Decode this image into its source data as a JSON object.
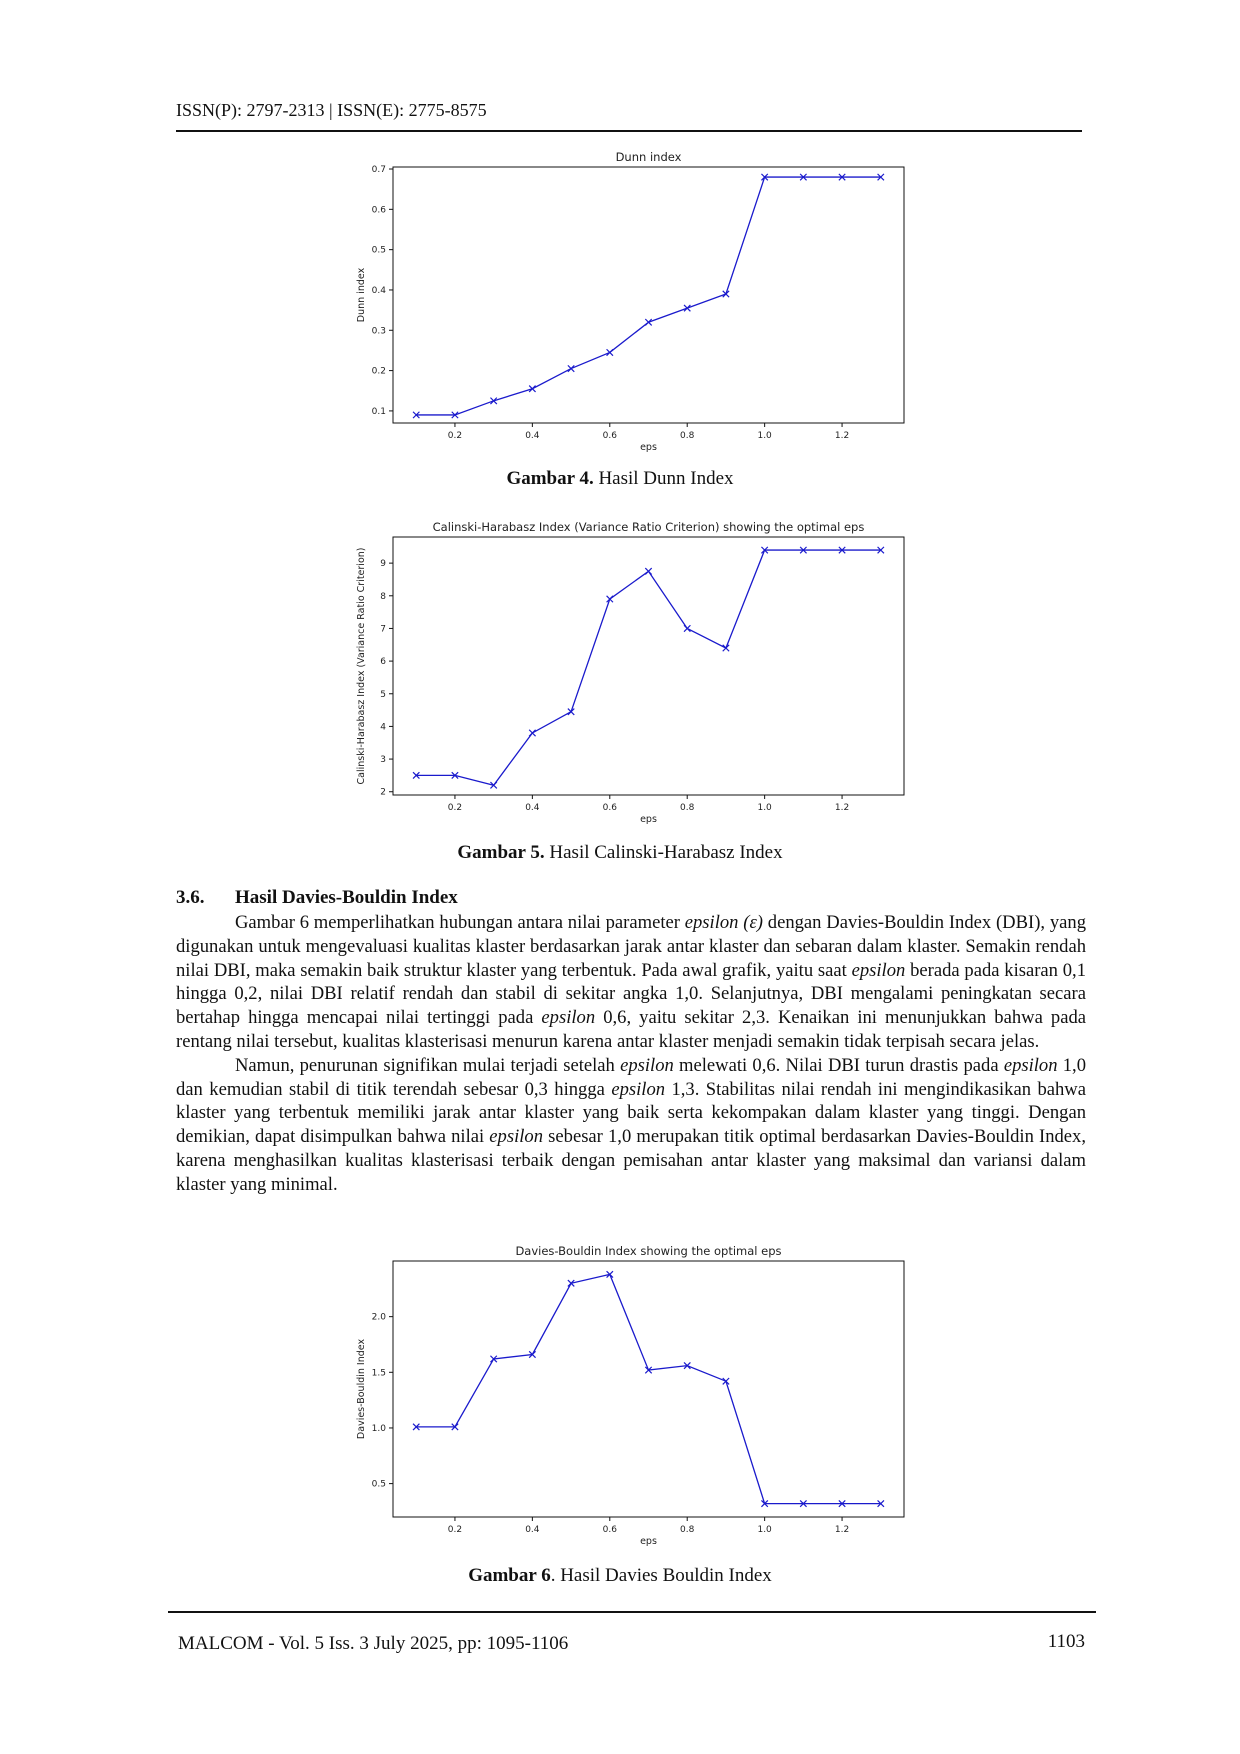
{
  "header": {
    "issn": "ISSN(P): 2797-2313 | ISSN(E): 2775-8575"
  },
  "figures": [
    {
      "caption_label": "Gambar 4.",
      "caption_text": " Hasil Dunn Index",
      "chart_data": {
        "type": "line",
        "title": "Dunn index",
        "xlabel": "eps",
        "ylabel": "Dunn index",
        "x": [
          0.1,
          0.2,
          0.3,
          0.4,
          0.5,
          0.6,
          0.7,
          0.8,
          0.9,
          1.0,
          1.1,
          1.2,
          1.3
        ],
        "y": [
          0.09,
          0.09,
          0.125,
          0.155,
          0.205,
          0.245,
          0.32,
          0.355,
          0.39,
          0.68,
          0.68,
          0.68,
          0.68
        ],
        "xlim": [
          0.04,
          1.36
        ],
        "ylim": [
          0.07,
          0.705
        ],
        "xticks": [
          0.2,
          0.4,
          0.6,
          0.8,
          1.0,
          1.2
        ],
        "xtick_labels": [
          "0.2",
          "0.4",
          "0.6",
          "0.8",
          "1.0",
          "1.2"
        ],
        "yticks": [
          0.1,
          0.2,
          0.3,
          0.4,
          0.5,
          0.6,
          0.7
        ],
        "ytick_labels": [
          "0.1",
          "0.2",
          "0.3",
          "0.4",
          "0.5",
          "0.6",
          "0.7"
        ],
        "marker": "x",
        "color": "#1a1acc",
        "grid": false
      }
    },
    {
      "caption_label": "Gambar 5.",
      "caption_text": " Hasil Calinski-Harabasz Index",
      "chart_data": {
        "type": "line",
        "title": "Calinski-Harabasz Index (Variance Ratio Criterion) showing the optimal eps",
        "xlabel": "eps",
        "ylabel": "Calinski-Harabasz Index (Variance Ratio Criterion)",
        "x": [
          0.1,
          0.2,
          0.3,
          0.4,
          0.5,
          0.6,
          0.7,
          0.8,
          0.9,
          1.0,
          1.1,
          1.2,
          1.3
        ],
        "y": [
          2.5,
          2.5,
          2.2,
          3.8,
          4.45,
          7.9,
          8.75,
          7.0,
          6.4,
          9.4,
          9.4,
          9.4,
          9.4
        ],
        "xlim": [
          0.04,
          1.36
        ],
        "ylim": [
          1.9,
          9.8
        ],
        "xticks": [
          0.2,
          0.4,
          0.6,
          0.8,
          1.0,
          1.2
        ],
        "xtick_labels": [
          "0.2",
          "0.4",
          "0.6",
          "0.8",
          "1.0",
          "1.2"
        ],
        "yticks": [
          2,
          3,
          4,
          5,
          6,
          7,
          8,
          9
        ],
        "ytick_labels": [
          "2",
          "3",
          "4",
          "5",
          "6",
          "7",
          "8",
          "9"
        ],
        "marker": "x",
        "color": "#1a1acc",
        "grid": false
      }
    },
    {
      "caption_label": "Gambar 6",
      "caption_text": ". Hasil Davies Bouldin Index",
      "chart_data": {
        "type": "line",
        "title": "Davies-Bouldin Index showing the optimal eps",
        "xlabel": "eps",
        "ylabel": "Davies-Bouldin Index",
        "x": [
          0.1,
          0.2,
          0.3,
          0.4,
          0.5,
          0.6,
          0.7,
          0.8,
          0.9,
          1.0,
          1.1,
          1.2,
          1.3
        ],
        "y": [
          1.01,
          1.01,
          1.62,
          1.66,
          2.3,
          2.38,
          1.52,
          1.56,
          1.42,
          0.32,
          0.32,
          0.32,
          0.32
        ],
        "xlim": [
          0.04,
          1.36
        ],
        "ylim": [
          0.2,
          2.5
        ],
        "xticks": [
          0.2,
          0.4,
          0.6,
          0.8,
          1.0,
          1.2
        ],
        "xtick_labels": [
          "0.2",
          "0.4",
          "0.6",
          "0.8",
          "1.0",
          "1.2"
        ],
        "yticks": [
          0.5,
          1.0,
          1.5,
          2.0
        ],
        "ytick_labels": [
          "0.5",
          "1.0",
          "1.5",
          "2.0"
        ],
        "marker": "x",
        "color": "#1a1acc",
        "grid": false
      }
    }
  ],
  "section": {
    "number": "3.6.",
    "title": "Hasil Davies-Bouldin Index"
  },
  "paragraph1": {
    "t1": "Gambar 6 memperlihatkan hubungan antara nilai parameter ",
    "em1": "epsilon (ε)",
    "t2": " dengan Davies-Bouldin Index (DBI), yang digunakan untuk mengevaluasi kualitas klaster berdasarkan jarak antar klaster dan sebaran dalam klaster. Semakin rendah nilai DBI, maka semakin baik struktur klaster yang terbentuk. Pada awal grafik, yaitu saat ",
    "em2": "epsilon",
    "t3": " berada pada kisaran 0,1 hingga 0,2, nilai DBI relatif rendah dan stabil di sekitar angka 1,0. Selanjutnya, DBI mengalami peningkatan secara bertahap hingga mencapai nilai tertinggi pada ",
    "em3": "epsilon",
    "t4": " 0,6, yaitu sekitar 2,3. Kenaikan ini menunjukkan bahwa pada rentang nilai tersebut, kualitas klasterisasi menurun karena antar klaster menjadi semakin tidak terpisah secara jelas."
  },
  "paragraph2": {
    "t1": "Namun, penurunan signifikan mulai terjadi setelah ",
    "em1": "epsilon",
    "t2": " melewati 0,6. Nilai DBI turun drastis pada ",
    "em2": "epsilon",
    "t3": " 1,0 dan kemudian stabil di titik terendah sebesar 0,3 hingga ",
    "em3": "epsilon",
    "t4": " 1,3. Stabilitas nilai rendah ini mengindikasikan bahwa klaster yang terbentuk memiliki jarak antar klaster yang baik serta kekompakan dalam klaster yang tinggi. Dengan demikian, dapat disimpulkan bahwa nilai ",
    "em4": "epsilon",
    "t5": " sebesar 1,0 merupakan titik optimal berdasarkan Davies-Bouldin Index, karena menghasilkan kualitas klasterisasi terbaik dengan pemisahan antar klaster yang maksimal dan variansi dalam klaster yang minimal."
  },
  "footer": {
    "journal": "MALCOM - Vol. 5 Iss. 3 July 2025, pp: 1095-1106",
    "page_number": "1103"
  }
}
